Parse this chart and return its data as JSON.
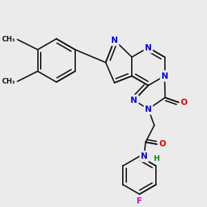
{
  "bg_color": "#ebebeb",
  "bond_color": "#1a1a1a",
  "bond_width": 1.4,
  "figsize": [
    3.0,
    3.0
  ],
  "dpi": 100,
  "atom_colors": {
    "N": "#0000ee",
    "O": "#dd0000",
    "F": "#cc00cc",
    "C": "#1a1a1a",
    "H": "#008800"
  }
}
